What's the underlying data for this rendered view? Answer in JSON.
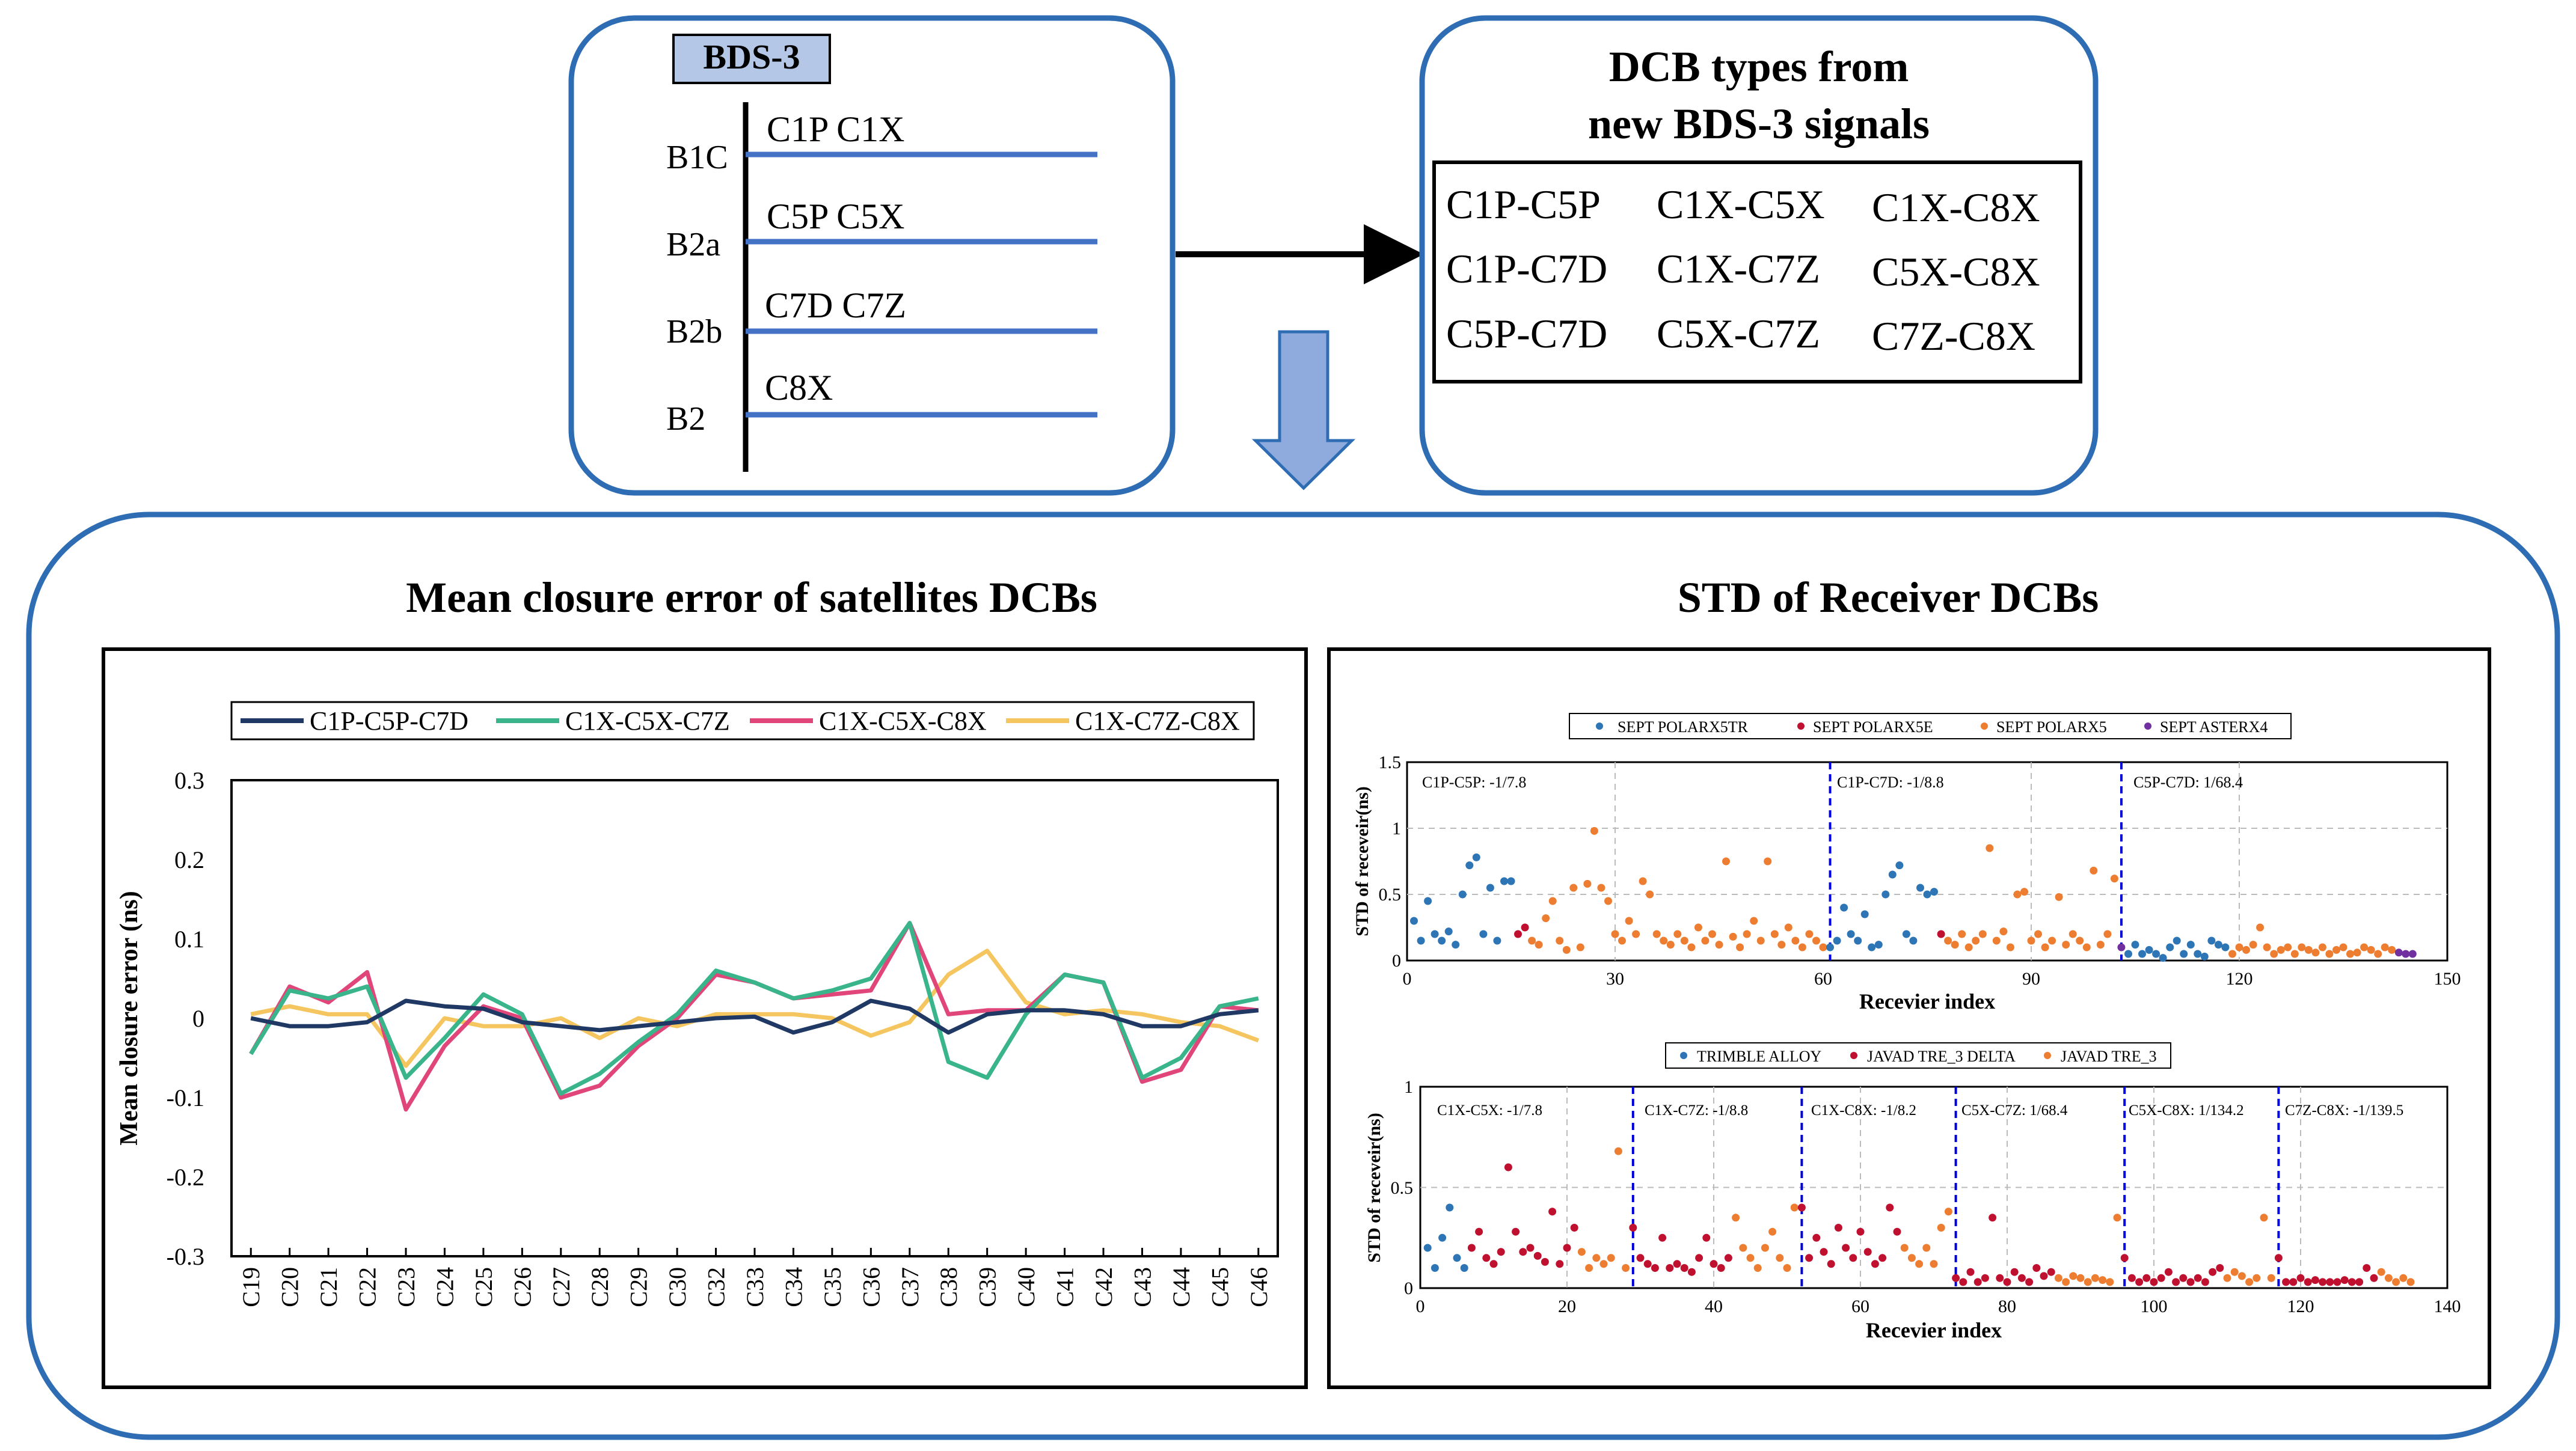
{
  "bds_panel": {
    "label": "BDS-3",
    "signals": [
      {
        "band": "B1C",
        "codes": "C1P C1X"
      },
      {
        "band": "B2a",
        "codes": "C5P C5X"
      },
      {
        "band": "B2b",
        "codes": "C7D C7Z"
      },
      {
        "band": "B2",
        "codes": "C8X"
      }
    ]
  },
  "dcb_panel": {
    "title_line1": "DCB types from",
    "title_line2": "new BDS-3 signals",
    "rows": [
      [
        "C1P-C5P",
        "C1X-C5X",
        "C1X-C8X"
      ],
      [
        "C1P-C7D",
        "C1X-C7Z",
        "C5X-C8X"
      ],
      [
        "C5P-C7D",
        "C5X-C7Z",
        "C7Z-C8X"
      ]
    ]
  },
  "left_section_title": "Mean closure error of satellites DCBs",
  "right_section_title": "STD of Receiver DCBs",
  "colors": {
    "panel_border": "#2e6db4",
    "signal_line": "#4472c4",
    "down_arrow_fill": "#8faadc",
    "bds_label_fill": "#b4c7e7",
    "c1p": "#1f3864",
    "c1x5x7z": "#3ab48a",
    "c1x5x8x": "#e0467a",
    "c1x7z8x": "#f5c660",
    "pt_blue": "#2e75b6",
    "pt_red": "#c0102f",
    "pt_orange": "#ed7d31",
    "pt_purple": "#7030a0",
    "divider": "#0000dd"
  },
  "chart_data": [
    {
      "type": "line",
      "title": "Mean closure error of satellites DCBs",
      "xlabel": "",
      "ylabel": "Mean closure error (ns)",
      "ylim": [
        -0.3,
        0.3
      ],
      "yticks": [
        "-0.3",
        "-0.2",
        "-0.1",
        "0",
        "0.1",
        "0.2",
        "0.3"
      ],
      "grid": false,
      "legend": "top",
      "categories": [
        "C19",
        "C20",
        "C21",
        "C22",
        "C23",
        "C24",
        "C25",
        "C26",
        "C27",
        "C28",
        "C29",
        "C30",
        "C32",
        "C33",
        "C34",
        "C35",
        "C36",
        "C37",
        "C38",
        "C39",
        "C40",
        "C41",
        "C42",
        "C43",
        "C44",
        "C45",
        "C46"
      ],
      "series": [
        {
          "name": "C1P-C5P-C7D",
          "values": [
            0.0,
            -0.01,
            -0.01,
            -0.005,
            0.022,
            0.015,
            0.012,
            -0.005,
            -0.01,
            -0.015,
            -0.01,
            -0.005,
            0.0,
            0.002,
            -0.018,
            -0.005,
            0.022,
            0.012,
            -0.018,
            0.005,
            0.01,
            0.01,
            0.005,
            -0.01,
            -0.01,
            0.005,
            0.01
          ]
        },
        {
          "name": "C1X-C5X-C7Z",
          "values": [
            -0.045,
            0.035,
            0.025,
            0.04,
            -0.075,
            -0.025,
            0.03,
            0.005,
            -0.095,
            -0.07,
            -0.03,
            0.005,
            0.06,
            0.045,
            0.025,
            0.035,
            0.05,
            0.12,
            -0.055,
            -0.075,
            0.005,
            0.055,
            0.045,
            -0.075,
            -0.05,
            0.015,
            0.025
          ]
        },
        {
          "name": "C1X-C5X-C8X",
          "values": [
            -0.045,
            0.04,
            0.02,
            0.058,
            -0.115,
            -0.035,
            0.015,
            0.0,
            -0.1,
            -0.085,
            -0.035,
            0.0,
            0.055,
            0.045,
            0.025,
            0.03,
            0.035,
            0.12,
            0.005,
            0.01,
            0.01,
            0.055,
            0.045,
            -0.08,
            -0.065,
            0.015,
            0.01
          ]
        },
        {
          "name": "C1X-C7Z-C8X",
          "values": [
            0.005,
            0.015,
            0.005,
            0.005,
            -0.06,
            0.0,
            -0.01,
            -0.01,
            0.0,
            -0.025,
            0.0,
            -0.01,
            0.005,
            0.005,
            0.005,
            0.0,
            -0.022,
            -0.005,
            0.055,
            0.085,
            0.02,
            0.005,
            0.01,
            0.005,
            -0.005,
            -0.01,
            -0.028
          ]
        }
      ]
    },
    {
      "type": "scatter",
      "xlabel": "Recevier index",
      "ylabel": "STD of receveir(ns)",
      "xlim": [
        0,
        150
      ],
      "ylim": [
        0,
        1.5
      ],
      "xticks": [
        "0",
        "30",
        "60",
        "90",
        "120",
        "150"
      ],
      "yticks": [
        "0",
        "0.5",
        "1",
        "1.5"
      ],
      "grid": true,
      "legend": "top",
      "series_names": [
        "SEPT POLARX5TR",
        "SEPT POLARX5E",
        "SEPT POLARX5",
        "SEPT ASTERX4"
      ],
      "annotations": [
        "C1P-C5P: -1/7.8",
        "C1P-C7D: -1/8.8",
        "C5P-C7D: 1/68.4"
      ],
      "dividers": [
        61,
        103
      ],
      "sections": [
        {
          "start": 1,
          "end": 60,
          "values": [
            0.3,
            0.15,
            0.45,
            0.2,
            0.15,
            0.22,
            0.12,
            0.5,
            0.72,
            0.78,
            0.2,
            0.55,
            0.15,
            0.6,
            0.6,
            0.2,
            0.25,
            0.15,
            0.12,
            0.32,
            0.45,
            0.15,
            0.08,
            0.55,
            0.1,
            0.58,
            0.98,
            0.55,
            0.45,
            0.2,
            0.15,
            0.3,
            0.2,
            0.6,
            0.5,
            0.2,
            0.15,
            0.12,
            0.2,
            0.15,
            0.1,
            0.25,
            0.15,
            0.2,
            0.12,
            0.75,
            0.18,
            0.1,
            0.2,
            0.3,
            0.15,
            0.75,
            0.2,
            0.12,
            0.25,
            0.15,
            0.1,
            0.2,
            0.15,
            0.1
          ],
          "categories": [
            0,
            0,
            0,
            0,
            0,
            0,
            0,
            0,
            0,
            0,
            0,
            0,
            0,
            0,
            0,
            1,
            1,
            2,
            2,
            2,
            2,
            2,
            2,
            2,
            2,
            2,
            2,
            2,
            2,
            2,
            2,
            2,
            2,
            2,
            2,
            2,
            2,
            2,
            2,
            2,
            2,
            2,
            2,
            2,
            2,
            2,
            2,
            2,
            2,
            2,
            2,
            2,
            2,
            2,
            2,
            2,
            2,
            2,
            2,
            2
          ]
        },
        {
          "start": 61,
          "end": 102,
          "values": [
            0.1,
            0.15,
            0.4,
            0.2,
            0.15,
            0.35,
            0.1,
            0.12,
            0.5,
            0.65,
            0.72,
            0.2,
            0.15,
            0.55,
            0.5,
            0.52,
            0.2,
            0.15,
            0.12,
            0.2,
            0.1,
            0.15,
            0.2,
            0.85,
            0.15,
            0.22,
            0.1,
            0.5,
            0.52,
            0.15,
            0.2,
            0.1,
            0.15,
            0.48,
            0.12,
            0.2,
            0.15,
            0.1,
            0.68,
            0.12,
            0.2,
            0.62
          ],
          "categories": [
            0,
            0,
            0,
            0,
            0,
            0,
            0,
            0,
            0,
            0,
            0,
            0,
            0,
            0,
            0,
            0,
            1,
            2,
            2,
            2,
            2,
            2,
            2,
            2,
            2,
            2,
            2,
            2,
            2,
            2,
            2,
            2,
            2,
            2,
            2,
            2,
            2,
            2,
            2,
            2,
            2,
            2
          ]
        },
        {
          "start": 103,
          "end": 145,
          "values": [
            0.1,
            0.05,
            0.12,
            0.05,
            0.08,
            0.05,
            0.02,
            0.1,
            0.15,
            0.05,
            0.12,
            0.05,
            0.03,
            0.15,
            0.12,
            0.1,
            0.05,
            0.1,
            0.08,
            0.12,
            0.25,
            0.1,
            0.05,
            0.08,
            0.1,
            0.05,
            0.1,
            0.08,
            0.06,
            0.1,
            0.05,
            0.08,
            0.1,
            0.05,
            0.06,
            0.1,
            0.08,
            0.05,
            0.1,
            0.08,
            0.06,
            0.05,
            0.05
          ],
          "categories": [
            3,
            0,
            0,
            0,
            0,
            0,
            0,
            0,
            0,
            0,
            0,
            0,
            0,
            0,
            0,
            0,
            2,
            2,
            2,
            2,
            2,
            2,
            2,
            2,
            2,
            2,
            2,
            2,
            2,
            2,
            2,
            2,
            2,
            2,
            2,
            2,
            2,
            2,
            2,
            2,
            3,
            3,
            3
          ]
        }
      ]
    },
    {
      "type": "scatter",
      "xlabel": "Recevier index",
      "ylabel": "STD of receveir(ns)",
      "xlim": [
        0,
        140
      ],
      "ylim": [
        0,
        1
      ],
      "xticks": [
        "0",
        "20",
        "40",
        "60",
        "80",
        "100",
        "120",
        "140"
      ],
      "yticks": [
        "0",
        "0.5",
        "1"
      ],
      "grid": true,
      "legend": "top",
      "series_names": [
        "TRIMBLE ALLOY",
        "JAVAD TRE_3 DELTA",
        "JAVAD TRE_3"
      ],
      "annotations": [
        "C1X-C5X: -1/7.8",
        "C1X-C7Z: -1/8.8",
        "C1X-C8X: -1/8.2",
        "C5X-C7Z: 1/68.4",
        "C5X-C8X: 1/134.2",
        "C7Z-C8X: -1/139.5"
      ],
      "dividers": [
        29,
        52,
        73,
        96,
        117
      ],
      "sections": [
        {
          "start": 1,
          "end": 28,
          "values": [
            0.2,
            0.1,
            0.25,
            0.4,
            0.15,
            0.1,
            0.2,
            0.28,
            0.15,
            0.12,
            0.18,
            0.6,
            0.28,
            0.18,
            0.2,
            0.16,
            0.13,
            0.38,
            0.12,
            0.2,
            0.3,
            0.18,
            0.1,
            0.15,
            0.12,
            0.15,
            0.68,
            0.1
          ],
          "categories": [
            0,
            0,
            0,
            0,
            0,
            0,
            1,
            1,
            1,
            1,
            1,
            1,
            1,
            1,
            1,
            1,
            1,
            1,
            1,
            1,
            1,
            2,
            2,
            2,
            2,
            2,
            2,
            2
          ]
        },
        {
          "start": 29,
          "end": 51,
          "values": [
            0.3,
            0.15,
            0.12,
            0.1,
            0.25,
            0.1,
            0.12,
            0.1,
            0.08,
            0.15,
            0.25,
            0.12,
            0.1,
            0.15,
            0.35,
            0.2,
            0.15,
            0.1,
            0.2,
            0.28,
            0.15,
            0.1,
            0.4
          ],
          "categories": [
            1,
            1,
            1,
            1,
            1,
            1,
            1,
            1,
            1,
            1,
            1,
            1,
            1,
            1,
            2,
            2,
            2,
            2,
            2,
            2,
            2,
            2,
            2
          ]
        },
        {
          "start": 52,
          "end": 72,
          "values": [
            0.4,
            0.15,
            0.25,
            0.18,
            0.12,
            0.3,
            0.2,
            0.15,
            0.28,
            0.18,
            0.12,
            0.15,
            0.4,
            0.28,
            0.2,
            0.15,
            0.12,
            0.2,
            0.12,
            0.3,
            0.38
          ],
          "categories": [
            1,
            1,
            1,
            1,
            1,
            1,
            1,
            1,
            1,
            1,
            1,
            1,
            1,
            1,
            2,
            2,
            2,
            2,
            2,
            2,
            2
          ]
        },
        {
          "start": 73,
          "end": 95,
          "values": [
            0.05,
            0.03,
            0.08,
            0.03,
            0.05,
            0.35,
            0.05,
            0.03,
            0.08,
            0.05,
            0.03,
            0.1,
            0.06,
            0.08,
            0.05,
            0.03,
            0.06,
            0.05,
            0.03,
            0.05,
            0.04,
            0.03,
            0.35
          ],
          "categories": [
            1,
            1,
            1,
            1,
            1,
            1,
            1,
            1,
            1,
            1,
            1,
            1,
            1,
            1,
            2,
            2,
            2,
            2,
            2,
            2,
            2,
            2,
            2
          ]
        },
        {
          "start": 96,
          "end": 116,
          "values": [
            0.15,
            0.05,
            0.03,
            0.05,
            0.03,
            0.05,
            0.08,
            0.03,
            0.05,
            0.03,
            0.05,
            0.03,
            0.08,
            0.1,
            0.05,
            0.08,
            0.06,
            0.03,
            0.05,
            0.35,
            0.05
          ],
          "categories": [
            1,
            1,
            1,
            1,
            1,
            1,
            1,
            1,
            1,
            1,
            1,
            1,
            1,
            1,
            2,
            2,
            2,
            2,
            2,
            2,
            2
          ]
        },
        {
          "start": 117,
          "end": 135,
          "values": [
            0.15,
            0.03,
            0.03,
            0.05,
            0.03,
            0.04,
            0.03,
            0.03,
            0.03,
            0.04,
            0.03,
            0.03,
            0.1,
            0.05,
            0.08,
            0.05,
            0.03,
            0.05,
            0.03
          ],
          "categories": [
            1,
            1,
            1,
            1,
            1,
            1,
            1,
            1,
            1,
            1,
            1,
            1,
            1,
            1,
            2,
            2,
            2,
            2,
            2
          ]
        }
      ]
    }
  ]
}
